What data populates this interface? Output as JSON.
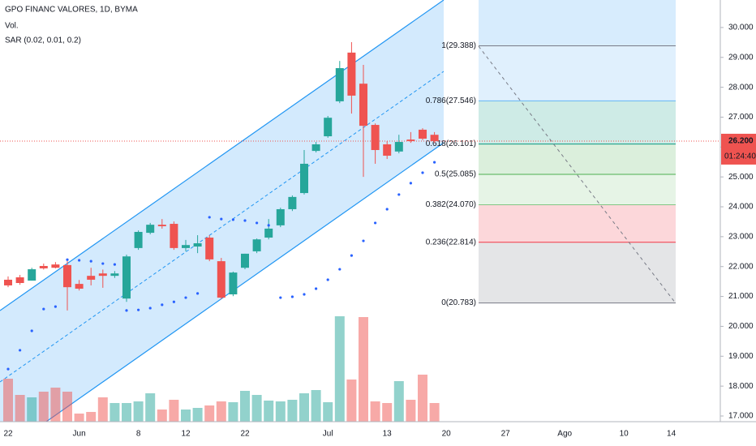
{
  "chart_data": {
    "type": "candlestick",
    "title": "GPO FINANC VALORES, 1D, BYMA",
    "indicators": [
      "Vol.",
      "SAR (0.02, 0.01, 0.2)"
    ],
    "categories": [
      "22",
      null,
      null,
      null,
      null,
      null,
      "Jun",
      null,
      null,
      null,
      null,
      "8",
      null,
      null,
      null,
      "12",
      null,
      null,
      null,
      null,
      "22",
      null,
      null,
      null,
      null,
      null,
      null,
      "Jul",
      null,
      null,
      null,
      null,
      "13",
      null,
      null,
      null,
      null,
      "20",
      null,
      null,
      null,
      null,
      "27",
      null,
      null,
      null,
      null,
      "Ago",
      null,
      null,
      null,
      null,
      "10",
      null,
      null,
      null,
      "14"
    ],
    "open": [
      21.56,
      21.64,
      21.53,
      22.02,
      22.07,
      22.05,
      21.42,
      21.69,
      21.77,
      21.69,
      20.93,
      22.62,
      23.13,
      23.4,
      23.43,
      22.62,
      22.67,
      22.97,
      22.18,
      21.07,
      21.96,
      22.51,
      22.97,
      23.38,
      23.92,
      24.46,
      25.87,
      26.36,
      27.53,
      29.16,
      28.12,
      26.74,
      26.09,
      25.85,
      26.25,
      26.58,
      26.41,
      null,
      null,
      null,
      null,
      null,
      null,
      null,
      null,
      null,
      null,
      null,
      null,
      null,
      null,
      null,
      null,
      null,
      null,
      null,
      null
    ],
    "high": [
      21.67,
      21.72,
      21.96,
      22.1,
      22.15,
      22.18,
      21.55,
      21.96,
      21.9,
      21.85,
      22.4,
      23.21,
      23.46,
      23.59,
      23.51,
      22.89,
      23.05,
      23.05,
      22.29,
      21.83,
      22.43,
      22.94,
      23.59,
      23.97,
      24.38,
      25.9,
      26.17,
      27.04,
      28.88,
      29.51,
      28.75,
      26.79,
      26.2,
      26.41,
      26.5,
      26.63,
      26.5,
      null,
      null,
      null,
      null,
      null,
      null,
      null,
      null,
      null,
      null,
      null,
      null,
      null,
      null,
      null,
      null,
      null,
      null,
      null,
      null
    ],
    "low": [
      21.31,
      21.39,
      21.53,
      21.9,
      21.94,
      20.53,
      21.2,
      21.37,
      21.29,
      21.62,
      20.82,
      22.56,
      23.08,
      23.27,
      22.56,
      22.51,
      22.45,
      22.18,
      20.91,
      21.01,
      21.91,
      22.45,
      22.91,
      23.32,
      23.86,
      24.41,
      25.82,
      26.31,
      27.47,
      27.12,
      25.0,
      25.44,
      25.6,
      25.79,
      26.14,
      26.23,
      26.14,
      null,
      null,
      null,
      null,
      null,
      null,
      null,
      null,
      null,
      null,
      null,
      null,
      null,
      null,
      null,
      null,
      null,
      null,
      null,
      null
    ],
    "close": [
      21.37,
      21.45,
      21.91,
      21.94,
      21.96,
      21.31,
      21.26,
      21.56,
      21.69,
      21.77,
      22.34,
      23.16,
      23.4,
      23.35,
      22.62,
      22.72,
      22.78,
      22.24,
      20.96,
      21.8,
      22.43,
      22.91,
      23.27,
      23.92,
      24.33,
      25.44,
      26.09,
      26.98,
      28.64,
      27.72,
      26.71,
      25.9,
      25.71,
      26.17,
      26.2,
      26.28,
      26.2,
      null,
      null,
      null,
      null,
      null,
      null,
      null,
      null,
      null,
      null,
      null,
      null,
      null,
      null,
      null,
      null,
      null,
      null,
      null,
      null
    ],
    "volume": [
      53,
      33,
      30,
      37,
      42,
      37,
      10,
      12,
      30,
      23,
      23,
      25,
      35,
      15,
      27,
      15,
      17,
      20,
      25,
      24,
      38,
      33,
      26,
      25,
      27,
      35,
      39,
      24,
      130,
      52,
      129,
      25,
      23,
      50,
      27,
      58,
      23,
      null,
      null,
      null,
      null,
      null,
      null,
      null,
      null,
      null,
      null,
      null,
      null,
      null,
      null,
      null,
      null,
      null,
      null,
      null,
      null
    ],
    "sar": [
      18.57,
      19.2,
      19.85,
      20.58,
      20.66,
      22.23,
      22.21,
      22.18,
      22.1,
      22.07,
      20.53,
      20.55,
      20.61,
      20.72,
      20.82,
      20.96,
      21.1,
      23.65,
      23.59,
      23.57,
      23.54,
      23.46,
      23.38,
      20.96,
      20.99,
      21.07,
      21.26,
      21.56,
      21.91,
      22.37,
      22.86,
      23.46,
      23.92,
      24.41,
      24.79,
      25.14,
      25.49,
      null,
      null,
      null,
      null,
      null,
      null,
      null,
      null,
      null,
      null,
      null,
      null,
      null,
      null,
      null,
      null,
      null,
      null,
      null,
      null
    ],
    "up_color": "#26a69a",
    "down_color": "#ef5350",
    "sar_color": "#2962ff",
    "ylim": [
      16.81,
      30.92
    ],
    "yticks": [
      {
        "value": 17,
        "label": "17.000"
      },
      {
        "value": 18,
        "label": "18.000"
      },
      {
        "value": 19,
        "label": "19.000"
      },
      {
        "value": 20,
        "label": "20.000"
      },
      {
        "value": 21,
        "label": "21.000"
      },
      {
        "value": 22,
        "label": "22.000"
      },
      {
        "value": 23,
        "label": "23.000"
      },
      {
        "value": 24,
        "label": "24.000"
      },
      {
        "value": 25,
        "label": "25.000"
      },
      {
        "value": 26,
        "label": "26.000"
      },
      {
        "value": 27,
        "label": "27.000"
      },
      {
        "value": 28,
        "label": "28.000"
      },
      {
        "value": 29,
        "label": "29.000"
      },
      {
        "value": 30,
        "label": "30.000"
      }
    ],
    "last_price": {
      "value": 26.2,
      "label": "26.200"
    },
    "countdown": "01:24:40",
    "fib": [
      {
        "label": "1(29.388)",
        "price": 29.388,
        "color": "#787b86"
      },
      {
        "label": "0.786(27.546)",
        "price": 27.546,
        "color": "#64b5f6"
      },
      {
        "label": "0.618(26.101)",
        "price": 26.101,
        "color": "#089981"
      },
      {
        "label": "0.5(25.085)",
        "price": 25.085,
        "color": "#4caf50"
      },
      {
        "label": "0.382(24.070)",
        "price": 24.07,
        "color": "#81c784"
      },
      {
        "label": "0.236(22.814)",
        "price": 22.814,
        "color": "#f23645"
      },
      {
        "label": "0(20.783)",
        "price": 20.783,
        "color": "#787b86"
      }
    ]
  }
}
